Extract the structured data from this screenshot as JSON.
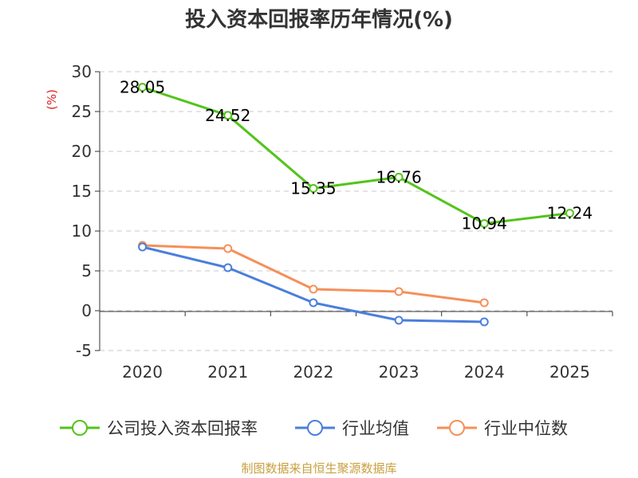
{
  "chart_data": {
    "type": "line",
    "title": "投入资本回报率历年情况(%)",
    "ylabel": "(%)",
    "xlabel": "",
    "categories": [
      "2020",
      "2021",
      "2022",
      "2023",
      "2024",
      "2025"
    ],
    "ylim": [
      -5,
      30
    ],
    "yticks": [
      30,
      25,
      20,
      15,
      10,
      5,
      0,
      -5
    ],
    "grid": "horizontal dashed",
    "legend_position": "bottom",
    "series": [
      {
        "name": "公司投入资本回报率",
        "color": "#52c41a",
        "values": [
          28.05,
          24.52,
          15.35,
          16.76,
          10.94,
          12.24
        ],
        "labels": [
          "28.05",
          "24.52",
          "15.35",
          "16.76",
          "10.94",
          "12.24"
        ]
      },
      {
        "name": "行业均值",
        "color": "#4a7fdc",
        "values": [
          8.0,
          5.4,
          1.0,
          -1.2,
          -1.4,
          null
        ]
      },
      {
        "name": "行业中位数",
        "color": "#f5905a",
        "values": [
          8.2,
          7.8,
          2.7,
          2.4,
          1.0,
          null
        ]
      }
    ]
  },
  "source": "制图数据来自恒生聚源数据库"
}
